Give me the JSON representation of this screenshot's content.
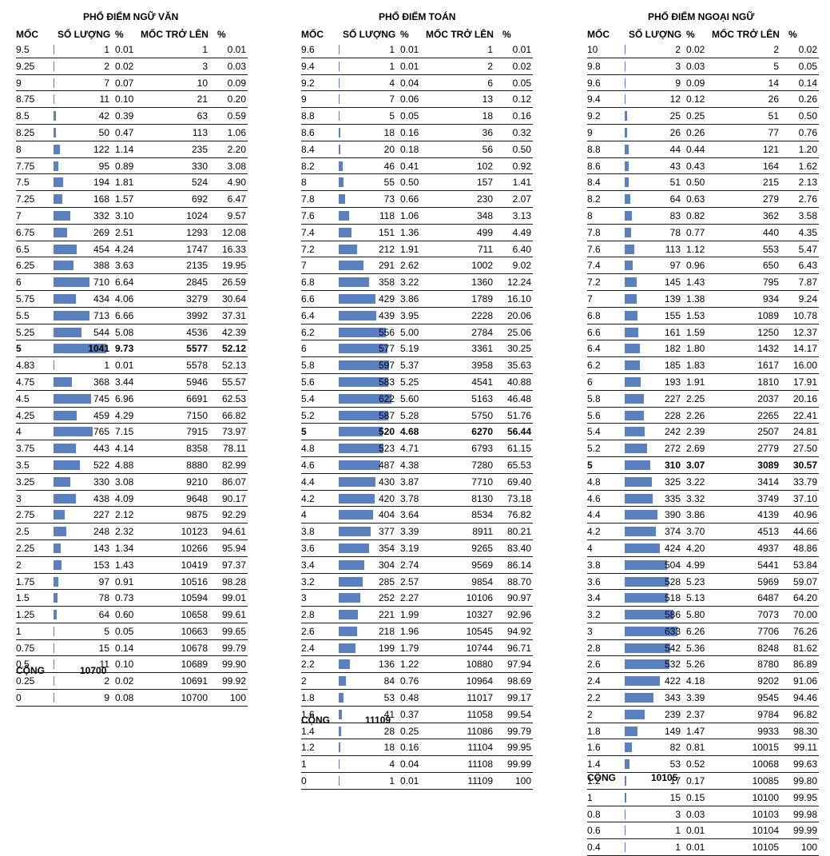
{
  "colors": {
    "bar": "#5b80c0",
    "rule": "#1a1a1a"
  },
  "headers": {
    "moc": "MỐC",
    "so_luong": "SỐ LƯỢNG",
    "pct": "%",
    "moc_tro_len": "MỐC TRỞ LÊN",
    "pct2": "%"
  },
  "total_label": "CỘNG",
  "chart_data": [
    {
      "type": "table",
      "title": "PHỔ ĐIỂM NGỮ VĂN",
      "total": "10700",
      "bold_mark": "5",
      "bar_max": 1041,
      "rows": [
        [
          "9.5",
          "1",
          "0.01",
          "1",
          "0.01"
        ],
        [
          "9.25",
          "2",
          "0.02",
          "3",
          "0.03"
        ],
        [
          "9",
          "7",
          "0.07",
          "10",
          "0.09"
        ],
        [
          "8.75",
          "11",
          "0.10",
          "21",
          "0.20"
        ],
        [
          "8.5",
          "42",
          "0.39",
          "63",
          "0.59"
        ],
        [
          "8.25",
          "50",
          "0.47",
          "113",
          "1.06"
        ],
        [
          "8",
          "122",
          "1.14",
          "235",
          "2.20"
        ],
        [
          "7.75",
          "95",
          "0.89",
          "330",
          "3.08"
        ],
        [
          "7.5",
          "194",
          "1.81",
          "524",
          "4.90"
        ],
        [
          "7.25",
          "168",
          "1.57",
          "692",
          "6.47"
        ],
        [
          "7",
          "332",
          "3.10",
          "1024",
          "9.57"
        ],
        [
          "6.75",
          "269",
          "2.51",
          "1293",
          "12.08"
        ],
        [
          "6.5",
          "454",
          "4.24",
          "1747",
          "16.33"
        ],
        [
          "6.25",
          "388",
          "3.63",
          "2135",
          "19.95"
        ],
        [
          "6",
          "710",
          "6.64",
          "2845",
          "26.59"
        ],
        [
          "5.75",
          "434",
          "4.06",
          "3279",
          "30.64"
        ],
        [
          "5.5",
          "713",
          "6.66",
          "3992",
          "37.31"
        ],
        [
          "5.25",
          "544",
          "5.08",
          "4536",
          "42.39"
        ],
        [
          "5",
          "1041",
          "9.73",
          "5577",
          "52.12"
        ],
        [
          "4.83",
          "1",
          "0.01",
          "5578",
          "52.13"
        ],
        [
          "4.75",
          "368",
          "3.44",
          "5946",
          "55.57"
        ],
        [
          "4.5",
          "745",
          "6.96",
          "6691",
          "62.53"
        ],
        [
          "4.25",
          "459",
          "4.29",
          "7150",
          "66.82"
        ],
        [
          "4",
          "765",
          "7.15",
          "7915",
          "73.97"
        ],
        [
          "3.75",
          "443",
          "4.14",
          "8358",
          "78.11"
        ],
        [
          "3.5",
          "522",
          "4.88",
          "8880",
          "82.99"
        ],
        [
          "3.25",
          "330",
          "3.08",
          "9210",
          "86.07"
        ],
        [
          "3",
          "438",
          "4.09",
          "9648",
          "90.17"
        ],
        [
          "2.75",
          "227",
          "2.12",
          "9875",
          "92.29"
        ],
        [
          "2.5",
          "248",
          "2.32",
          "10123",
          "94.61"
        ],
        [
          "2.25",
          "143",
          "1.34",
          "10266",
          "95.94"
        ],
        [
          "2",
          "153",
          "1.43",
          "10419",
          "97.37"
        ],
        [
          "1.75",
          "97",
          "0.91",
          "10516",
          "98.28"
        ],
        [
          "1.5",
          "78",
          "0.73",
          "10594",
          "99.01"
        ],
        [
          "1.25",
          "64",
          "0.60",
          "10658",
          "99.61"
        ],
        [
          "1",
          "5",
          "0.05",
          "10663",
          "99.65"
        ],
        [
          "0.75",
          "15",
          "0.14",
          "10678",
          "99.79"
        ],
        [
          "0.5",
          "11",
          "0.10",
          "10689",
          "99.90"
        ],
        [
          "0.25",
          "2",
          "0.02",
          "10691",
          "99.92"
        ],
        [
          "0",
          "9",
          "0.08",
          "10700",
          "100"
        ]
      ]
    },
    {
      "type": "table",
      "title": "PHỔ ĐIỂM TOÁN",
      "total": "11109",
      "bold_mark": "5",
      "bar_max": 622,
      "rows": [
        [
          "9.6",
          "1",
          "0.01",
          "1",
          "0.01"
        ],
        [
          "9.4",
          "1",
          "0.01",
          "2",
          "0.02"
        ],
        [
          "9.2",
          "4",
          "0.04",
          "6",
          "0.05"
        ],
        [
          "9",
          "7",
          "0.06",
          "13",
          "0.12"
        ],
        [
          "8.8",
          "5",
          "0.05",
          "18",
          "0.16"
        ],
        [
          "8.6",
          "18",
          "0.16",
          "36",
          "0.32"
        ],
        [
          "8.4",
          "20",
          "0.18",
          "56",
          "0.50"
        ],
        [
          "8.2",
          "46",
          "0.41",
          "102",
          "0.92"
        ],
        [
          "8",
          "55",
          "0.50",
          "157",
          "1.41"
        ],
        [
          "7.8",
          "73",
          "0.66",
          "230",
          "2.07"
        ],
        [
          "7.6",
          "118",
          "1.06",
          "348",
          "3.13"
        ],
        [
          "7.4",
          "151",
          "1.36",
          "499",
          "4.49"
        ],
        [
          "7.2",
          "212",
          "1.91",
          "711",
          "6.40"
        ],
        [
          "7",
          "291",
          "2.62",
          "1002",
          "9.02"
        ],
        [
          "6.8",
          "358",
          "3.22",
          "1360",
          "12.24"
        ],
        [
          "6.6",
          "429",
          "3.86",
          "1789",
          "16.10"
        ],
        [
          "6.4",
          "439",
          "3.95",
          "2228",
          "20.06"
        ],
        [
          "6.2",
          "556",
          "5.00",
          "2784",
          "25.06"
        ],
        [
          "6",
          "577",
          "5.19",
          "3361",
          "30.25"
        ],
        [
          "5.8",
          "597",
          "5.37",
          "3958",
          "35.63"
        ],
        [
          "5.6",
          "583",
          "5.25",
          "4541",
          "40.88"
        ],
        [
          "5.4",
          "622",
          "5.60",
          "5163",
          "46.48"
        ],
        [
          "5.2",
          "587",
          "5.28",
          "5750",
          "51.76"
        ],
        [
          "5",
          "520",
          "4.68",
          "6270",
          "56.44"
        ],
        [
          "4.8",
          "523",
          "4.71",
          "6793",
          "61.15"
        ],
        [
          "4.6",
          "487",
          "4.38",
          "7280",
          "65.53"
        ],
        [
          "4.4",
          "430",
          "3.87",
          "7710",
          "69.40"
        ],
        [
          "4.2",
          "420",
          "3.78",
          "8130",
          "73.18"
        ],
        [
          "4",
          "404",
          "3.64",
          "8534",
          "76.82"
        ],
        [
          "3.8",
          "377",
          "3.39",
          "8911",
          "80.21"
        ],
        [
          "3.6",
          "354",
          "3.19",
          "9265",
          "83.40"
        ],
        [
          "3.4",
          "304",
          "2.74",
          "9569",
          "86.14"
        ],
        [
          "3.2",
          "285",
          "2.57",
          "9854",
          "88.70"
        ],
        [
          "3",
          "252",
          "2.27",
          "10106",
          "90.97"
        ],
        [
          "2.8",
          "221",
          "1.99",
          "10327",
          "92.96"
        ],
        [
          "2.6",
          "218",
          "1.96",
          "10545",
          "94.92"
        ],
        [
          "2.4",
          "199",
          "1.79",
          "10744",
          "96.71"
        ],
        [
          "2.2",
          "136",
          "1.22",
          "10880",
          "97.94"
        ],
        [
          "2",
          "84",
          "0.76",
          "10964",
          "98.69"
        ],
        [
          "1.8",
          "53",
          "0.48",
          "11017",
          "99.17"
        ],
        [
          "1.6",
          "41",
          "0.37",
          "11058",
          "99.54"
        ],
        [
          "1.4",
          "28",
          "0.25",
          "11086",
          "99.79"
        ],
        [
          "1.2",
          "18",
          "0.16",
          "11104",
          "99.95"
        ],
        [
          "1",
          "4",
          "0.04",
          "11108",
          "99.99"
        ],
        [
          "0",
          "1",
          "0.01",
          "11109",
          "100"
        ]
      ]
    },
    {
      "type": "table",
      "title": "PHỔ ĐIỂM NGOẠI NGỮ",
      "total": "10105",
      "bold_mark": "5",
      "bar_max": 633,
      "rows": [
        [
          "10",
          "2",
          "0.02",
          "2",
          "0.02"
        ],
        [
          "9.8",
          "3",
          "0.03",
          "5",
          "0.05"
        ],
        [
          "9.6",
          "9",
          "0.09",
          "14",
          "0.14"
        ],
        [
          "9.4",
          "12",
          "0.12",
          "26",
          "0.26"
        ],
        [
          "9.2",
          "25",
          "0.25",
          "51",
          "0.50"
        ],
        [
          "9",
          "26",
          "0.26",
          "77",
          "0.76"
        ],
        [
          "8.8",
          "44",
          "0.44",
          "121",
          "1.20"
        ],
        [
          "8.6",
          "43",
          "0.43",
          "164",
          "1.62"
        ],
        [
          "8.4",
          "51",
          "0.50",
          "215",
          "2.13"
        ],
        [
          "8.2",
          "64",
          "0.63",
          "279",
          "2.76"
        ],
        [
          "8",
          "83",
          "0.82",
          "362",
          "3.58"
        ],
        [
          "7.8",
          "78",
          "0.77",
          "440",
          "4.35"
        ],
        [
          "7.6",
          "113",
          "1.12",
          "553",
          "5.47"
        ],
        [
          "7.4",
          "97",
          "0.96",
          "650",
          "6.43"
        ],
        [
          "7.2",
          "145",
          "1.43",
          "795",
          "7.87"
        ],
        [
          "7",
          "139",
          "1.38",
          "934",
          "9.24"
        ],
        [
          "6.8",
          "155",
          "1.53",
          "1089",
          "10.78"
        ],
        [
          "6.6",
          "161",
          "1.59",
          "1250",
          "12.37"
        ],
        [
          "6.4",
          "182",
          "1.80",
          "1432",
          "14.17"
        ],
        [
          "6.2",
          "185",
          "1.83",
          "1617",
          "16.00"
        ],
        [
          "6",
          "193",
          "1.91",
          "1810",
          "17.91"
        ],
        [
          "5.8",
          "227",
          "2.25",
          "2037",
          "20.16"
        ],
        [
          "5.6",
          "228",
          "2.26",
          "2265",
          "22.41"
        ],
        [
          "5.4",
          "242",
          "2.39",
          "2507",
          "24.81"
        ],
        [
          "5.2",
          "272",
          "2.69",
          "2779",
          "27.50"
        ],
        [
          "5",
          "310",
          "3.07",
          "3089",
          "30.57"
        ],
        [
          "4.8",
          "325",
          "3.22",
          "3414",
          "33.79"
        ],
        [
          "4.6",
          "335",
          "3.32",
          "3749",
          "37.10"
        ],
        [
          "4.4",
          "390",
          "3.86",
          "4139",
          "40.96"
        ],
        [
          "4.2",
          "374",
          "3.70",
          "4513",
          "44.66"
        ],
        [
          "4",
          "424",
          "4.20",
          "4937",
          "48.86"
        ],
        [
          "3.8",
          "504",
          "4.99",
          "5441",
          "53.84"
        ],
        [
          "3.6",
          "528",
          "5.23",
          "5969",
          "59.07"
        ],
        [
          "3.4",
          "518",
          "5.13",
          "6487",
          "64.20"
        ],
        [
          "3.2",
          "586",
          "5.80",
          "7073",
          "70.00"
        ],
        [
          "3",
          "633",
          "6.26",
          "7706",
          "76.26"
        ],
        [
          "2.8",
          "542",
          "5.36",
          "8248",
          "81.62"
        ],
        [
          "2.6",
          "532",
          "5.26",
          "8780",
          "86.89"
        ],
        [
          "2.4",
          "422",
          "4.18",
          "9202",
          "91.06"
        ],
        [
          "2.2",
          "343",
          "3.39",
          "9545",
          "94.46"
        ],
        [
          "2",
          "239",
          "2.37",
          "9784",
          "96.82"
        ],
        [
          "1.8",
          "149",
          "1.47",
          "9933",
          "98.30"
        ],
        [
          "1.6",
          "82",
          "0.81",
          "10015",
          "99.11"
        ],
        [
          "1.4",
          "53",
          "0.52",
          "10068",
          "99.63"
        ],
        [
          "1.2",
          "17",
          "0.17",
          "10085",
          "99.80"
        ],
        [
          "1",
          "15",
          "0.15",
          "10100",
          "99.95"
        ],
        [
          "0.8",
          "3",
          "0.03",
          "10103",
          "99.98"
        ],
        [
          "0.6",
          "1",
          "0.01",
          "10104",
          "99.99"
        ],
        [
          "0.4",
          "1",
          "0.01",
          "10105",
          "100"
        ]
      ]
    }
  ]
}
